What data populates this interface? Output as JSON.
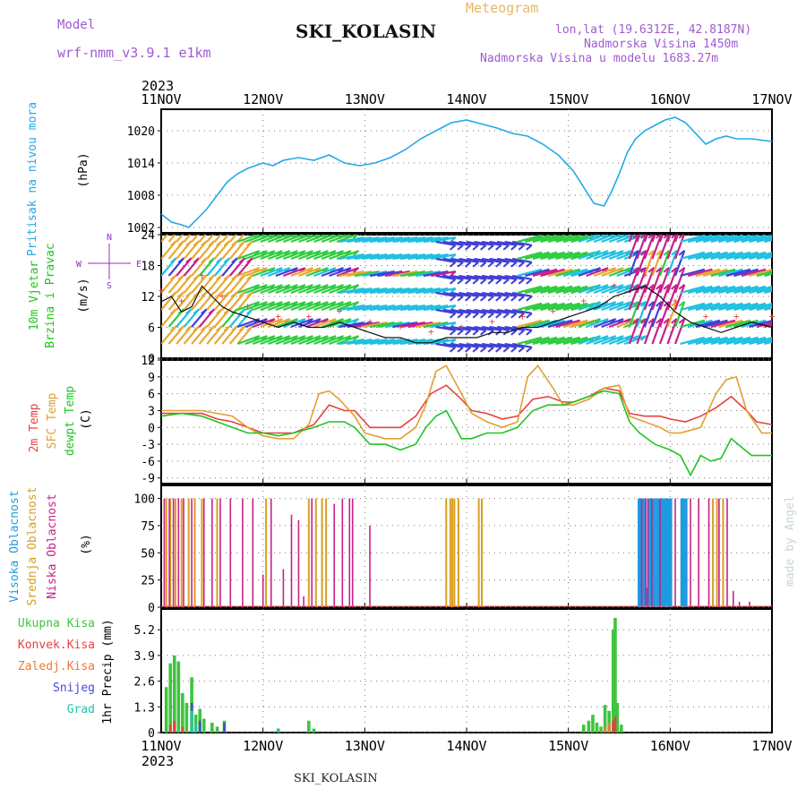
{
  "header": {
    "model_label": "Model",
    "model_name": "wrf-nmm_v3.9.1 e1km",
    "title": "SKI_KOLASIN",
    "meteogram": "Meteogram",
    "lonlat": "lon,lat (19.6312E, 42.8187N)",
    "altitude": "Nadmorska Visina 1450m",
    "model_altitude": "Nadmorska Visina u modelu 1683.27m"
  },
  "time_axis": {
    "year": "2023",
    "ticks": [
      "11NOV",
      "12NOV",
      "13NOV",
      "14NOV",
      "15NOV",
      "16NOV",
      "17NOV"
    ]
  },
  "footer": {
    "title": "SKI_KOLASIN",
    "credit": "made by Angel"
  },
  "colors": {
    "pressure": "#22a8e8",
    "temp2m": "#e84040",
    "sfc": "#e0a030",
    "dewpt": "#22c422",
    "visoka": "#1f9be0",
    "srednja": "#d8a020",
    "niska": "#c8208c",
    "ukupna": "#3ec43e",
    "konvek": "#e84040",
    "zaledj": "#f07830",
    "snijeg": "#4848d8",
    "grad": "#22c4a8",
    "wind_label": "#22c422",
    "pressure_label": "#22a8e8",
    "compass": "#9030c0"
  },
  "panels": {
    "pressure": {
      "label": "Pritisak na nivou mora",
      "unit": "(hPa)",
      "yticks": [
        "1020",
        "1014",
        "1008",
        "1002"
      ]
    },
    "wind": {
      "label_1": "10m Vjetar",
      "label_2": "Brzina i Pravac",
      "unit": "(m/s)",
      "compass": [
        "N",
        "S",
        "E",
        "W"
      ],
      "yticks": [
        "24",
        "18",
        "12",
        "6",
        "0"
      ]
    },
    "temperature": {
      "label_1": "2m Temp",
      "label_2": "SFC Temp",
      "label_3": "dewpt Temp",
      "unit": "(C)",
      "yticks": [
        "12",
        "9",
        "6",
        "3",
        "0",
        "-3",
        "-6",
        "-9"
      ]
    },
    "cloud": {
      "label_1": "Visoka Oblacnost",
      "label_2": "Srednja Oblacnost",
      "label_3": "Niska Oblacnost",
      "unit": "(%)",
      "yticks": [
        "100",
        "75",
        "50",
        "25",
        "0"
      ]
    },
    "precip": {
      "labels": [
        "Ukupna Kisa",
        "Konvek.Kisa",
        "Zaledj.Kisa",
        "Snijeg",
        "Grad"
      ],
      "unit": "1hr Precip (mm)",
      "yticks": [
        "5.2",
        "3.9",
        "2.6",
        "1.3",
        "0"
      ]
    }
  },
  "chart_data": [
    {
      "type": "line",
      "title": "Pritisak na nivou mora",
      "ylabel": "(hPa)",
      "ylim": [
        1001,
        1024
      ],
      "x_unit": "days since 11NOV 00h",
      "series": [
        {
          "name": "Pritisak na nivou mora",
          "x": [
            0,
            0.1,
            0.2,
            0.27,
            0.35,
            0.45,
            0.55,
            0.65,
            0.75,
            0.85,
            1.0,
            1.1,
            1.2,
            1.35,
            1.5,
            1.65,
            1.8,
            1.95,
            2.1,
            2.25,
            2.4,
            2.55,
            2.7,
            2.85,
            3.0,
            3.1,
            3.2,
            3.3,
            3.45,
            3.6,
            3.75,
            3.9,
            4.05,
            4.15,
            4.25,
            4.35,
            4.42,
            4.5,
            4.58,
            4.66,
            4.75,
            4.85,
            4.95,
            5.05,
            5.15,
            5.25,
            5.35,
            5.45,
            5.55,
            5.65,
            5.8,
            6.0
          ],
          "values": [
            1004.5,
            1003,
            1002.5,
            1002,
            1003.5,
            1005.5,
            1008,
            1010.5,
            1012,
            1013,
            1014,
            1013.5,
            1014.5,
            1015,
            1014.5,
            1015.5,
            1014,
            1013.5,
            1014,
            1015,
            1016.5,
            1018.5,
            1020,
            1021.5,
            1022,
            1021.5,
            1021,
            1020.5,
            1019.5,
            1019,
            1017.5,
            1015.5,
            1012.5,
            1009.5,
            1006.5,
            1006,
            1008.5,
            1012,
            1016,
            1018.5,
            1020,
            1021,
            1022,
            1022.5,
            1021.5,
            1019.5,
            1017.5,
            1018.5,
            1019,
            1018.5,
            1018.5,
            1018
          ]
        }
      ]
    },
    {
      "type": "line",
      "title": "10m Vjetar Brzina i Pravac",
      "ylabel": "(m/s)",
      "ylim": [
        0,
        24
      ],
      "series": [
        {
          "name": "10m Vjetar",
          "x": [
            0,
            0.1,
            0.2,
            0.3,
            0.4,
            0.5,
            0.6,
            0.7,
            0.85,
            1.0,
            1.15,
            1.3,
            1.45,
            1.6,
            1.75,
            1.9,
            2.05,
            2.2,
            2.35,
            2.5,
            2.65,
            2.8,
            2.95,
            3.1,
            3.25,
            3.4,
            3.55,
            3.7,
            3.85,
            4.0,
            4.15,
            4.3,
            4.45,
            4.6,
            4.75,
            4.9,
            5.05,
            5.2,
            5.35,
            5.5,
            5.65,
            5.8,
            6.0
          ],
          "values": [
            11,
            12,
            9,
            10,
            14,
            12,
            10,
            9,
            8,
            7,
            6,
            7,
            6,
            6,
            7,
            6,
            5,
            4,
            4,
            3,
            3,
            4,
            4,
            4,
            5,
            5,
            6,
            6,
            7,
            8,
            9,
            10,
            12,
            13,
            14,
            12,
            9,
            7,
            6,
            5,
            6,
            7,
            6
          ]
        }
      ]
    },
    {
      "type": "line",
      "title": "2m Temp / SFC Temp / dewpt Temp",
      "ylabel": "(C)",
      "ylim": [
        -10,
        12
      ],
      "series": [
        {
          "name": "2m Temp",
          "x": [
            0,
            0.2,
            0.4,
            0.55,
            0.7,
            0.85,
            1.0,
            1.15,
            1.3,
            1.5,
            1.65,
            1.8,
            1.9,
            2.05,
            2.2,
            2.35,
            2.5,
            2.65,
            2.8,
            2.95,
            3.05,
            3.2,
            3.35,
            3.5,
            3.65,
            3.8,
            3.95,
            4.05,
            4.2,
            4.35,
            4.5,
            4.6,
            4.75,
            4.9,
            5.0,
            5.15,
            5.3,
            5.45,
            5.6,
            5.75,
            5.85,
            6.0
          ],
          "values": [
            2.5,
            2.5,
            2.5,
            1.5,
            1,
            0,
            -1,
            -1,
            -1,
            0.5,
            4,
            3,
            3,
            0,
            0,
            0,
            2,
            6,
            7.5,
            5,
            3,
            2.5,
            1.5,
            2,
            5,
            5.5,
            4.5,
            4.5,
            5.5,
            7,
            6.5,
            2.5,
            2,
            2,
            1.5,
            1,
            2,
            3.5,
            5.5,
            3,
            1,
            0.5
          ]
        },
        {
          "name": "SFC Temp",
          "x": [
            0,
            0.2,
            0.4,
            0.55,
            0.7,
            0.85,
            1.0,
            1.15,
            1.3,
            1.45,
            1.55,
            1.65,
            1.75,
            1.9,
            2.0,
            2.2,
            2.35,
            2.5,
            2.6,
            2.7,
            2.8,
            2.95,
            3.05,
            3.2,
            3.35,
            3.5,
            3.6,
            3.7,
            3.85,
            3.95,
            4.05,
            4.2,
            4.35,
            4.5,
            4.6,
            4.75,
            4.9,
            5.0,
            5.1,
            5.3,
            5.45,
            5.55,
            5.65,
            5.75,
            5.9,
            6.0
          ],
          "values": [
            3,
            3,
            3,
            2.5,
            2,
            0,
            -1.5,
            -2,
            -2,
            0.5,
            6,
            6.5,
            5,
            2,
            -1,
            -2,
            -2,
            0,
            4,
            10,
            11,
            6,
            2.5,
            1,
            0,
            1,
            9,
            11,
            7,
            4,
            4,
            5,
            7,
            7.5,
            2,
            1,
            0,
            -1,
            -1,
            0,
            6,
            8.5,
            9,
            3,
            -1,
            -1
          ]
        },
        {
          "name": "dewpt Temp",
          "x": [
            0,
            0.2,
            0.4,
            0.55,
            0.7,
            0.85,
            1.0,
            1.15,
            1.3,
            1.5,
            1.65,
            1.8,
            1.9,
            2.05,
            2.2,
            2.35,
            2.5,
            2.6,
            2.7,
            2.8,
            2.95,
            3.05,
            3.2,
            3.35,
            3.5,
            3.65,
            3.8,
            3.95,
            4.05,
            4.2,
            4.35,
            4.5,
            4.6,
            4.7,
            4.85,
            5.0,
            5.1,
            5.2,
            5.3,
            5.4,
            5.5,
            5.6,
            5.7,
            5.8,
            5.9,
            6.0
          ],
          "values": [
            2,
            2.5,
            2,
            1,
            0,
            -1,
            -1,
            -1.5,
            -1,
            0,
            1,
            1,
            0,
            -3,
            -3,
            -4,
            -3,
            0,
            2,
            3,
            -2,
            -2,
            -1,
            -1,
            0,
            3,
            4,
            4,
            4.5,
            5.5,
            6.5,
            6,
            1,
            -1,
            -3,
            -4,
            -5,
            -8.5,
            -5,
            -6,
            -5.5,
            -2,
            -3.5,
            -5,
            -5,
            -5
          ]
        }
      ]
    },
    {
      "type": "bar",
      "title": "Oblacnost",
      "ylabel": "(%)",
      "ylim": [
        0,
        100
      ],
      "series": [
        {
          "name": "Visoka Oblacnost",
          "x": [
            4.7,
            4.72,
            4.74,
            4.76,
            4.8,
            4.82,
            4.84,
            4.88,
            4.9,
            4.92,
            4.94,
            4.96,
            4.98,
            5.0,
            5.12,
            5.15
          ],
          "values": [
            100,
            100,
            100,
            18,
            100,
            100,
            100,
            100,
            100,
            100,
            100,
            100,
            100,
            100,
            100,
            100
          ]
        },
        {
          "name": "Srednja Oblacnost",
          "x": [
            0.05,
            0.09,
            0.14,
            0.2,
            0.27,
            0.33,
            0.4,
            0.55,
            1.03,
            1.45,
            1.52,
            1.58,
            1.62,
            2.8,
            2.84,
            2.86,
            2.88,
            2.92,
            3.12,
            3.15,
            5.42,
            5.46,
            5.52
          ],
          "values": [
            100,
            100,
            100,
            100,
            100,
            100,
            100,
            100,
            100,
            100,
            100,
            100,
            100,
            100,
            100,
            100,
            100,
            100,
            100,
            100,
            100,
            100,
            100
          ]
        },
        {
          "name": "Niska Oblacnost",
          "x": [
            0.03,
            0.08,
            0.12,
            0.17,
            0.22,
            0.3,
            0.42,
            0.5,
            0.58,
            0.68,
            0.8,
            0.9,
            1.0,
            1.08,
            1.2,
            1.28,
            1.35,
            1.4,
            1.48,
            1.7,
            1.78,
            1.85,
            1.88,
            2.05,
            4.72,
            4.76,
            4.78,
            4.82,
            4.9,
            5.05,
            5.2,
            5.28,
            5.38,
            5.48,
            5.56,
            5.62,
            5.68,
            5.78
          ],
          "values": [
            100,
            100,
            100,
            100,
            100,
            100,
            100,
            100,
            100,
            100,
            100,
            100,
            30,
            100,
            35,
            85,
            80,
            10,
            100,
            95,
            100,
            100,
            100,
            75,
            100,
            100,
            100,
            100,
            100,
            100,
            100,
            100,
            100,
            100,
            100,
            15,
            5,
            5
          ]
        }
      ]
    },
    {
      "type": "bar",
      "title": "1hr Precip",
      "ylabel": "1hr Precip (mm)",
      "ylim": [
        0,
        6.2
      ],
      "series": [
        {
          "name": "Ukupna Kisa",
          "x": [
            0.05,
            0.09,
            0.13,
            0.17,
            0.21,
            0.25,
            0.3,
            0.34,
            0.38,
            0.42,
            0.5,
            0.55,
            0.62,
            1.15,
            1.45,
            1.5,
            4.15,
            4.2,
            4.24,
            4.28,
            4.32,
            4.36,
            4.4,
            4.44,
            4.46,
            4.48,
            4.52
          ],
          "values": [
            2.3,
            3.5,
            3.9,
            3.6,
            2.0,
            1.5,
            2.8,
            0.9,
            1.2,
            0.7,
            0.5,
            0.3,
            0.6,
            0.2,
            0.6,
            0.2,
            0.4,
            0.6,
            0.9,
            0.5,
            0.3,
            1.4,
            1.1,
            5.2,
            5.8,
            1.5,
            0.4
          ]
        },
        {
          "name": "Konvek.Kisa",
          "x": [
            0.09,
            0.13,
            0.21,
            4.44,
            4.46
          ],
          "values": [
            0.4,
            0.6,
            0.3,
            0.6,
            0.8
          ]
        },
        {
          "name": "Zaledj.Kisa",
          "x": [
            4.36,
            4.4
          ],
          "values": [
            0.3,
            0.5
          ]
        },
        {
          "name": "Snijeg",
          "x": [
            0.3,
            0.38,
            0.62
          ],
          "values": [
            1.5,
            0.6,
            0.5
          ]
        },
        {
          "name": "Grad",
          "x": [
            0.3,
            0.34,
            1.15
          ],
          "values": [
            1.1,
            0.4,
            0.2
          ]
        }
      ]
    }
  ]
}
